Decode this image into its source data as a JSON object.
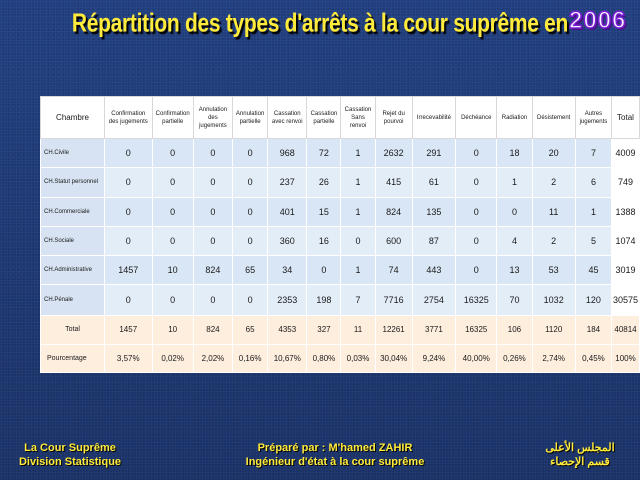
{
  "slide": {
    "title": "Répartition des types d'arrêts à la cour suprême en",
    "year": "2006"
  },
  "table": {
    "headers": [
      "Chambre",
      "Confirmation des jugements",
      "Confirmation partielle",
      "Annulation des jugements",
      "Annulation partielle",
      "Cassation avec renvoi",
      "Cassation partielle",
      "Cassation Sans renvoi",
      "Rejet du pourvoi",
      "Irrecevabilité",
      "Déchéance",
      "Radiation",
      "Désistement",
      "Autres jugements",
      "Total"
    ],
    "rows": [
      {
        "label": "CH.Civile",
        "values": [
          "0",
          "0",
          "0",
          "0",
          "968",
          "72",
          "1",
          "2632",
          "291",
          "0",
          "18",
          "20",
          "7",
          "4009"
        ]
      },
      {
        "label": "CH.Statut personnel",
        "values": [
          "0",
          "0",
          "0",
          "0",
          "237",
          "26",
          "1",
          "415",
          "61",
          "0",
          "1",
          "2",
          "6",
          "749"
        ]
      },
      {
        "label": "CH.Commerciale",
        "values": [
          "0",
          "0",
          "0",
          "0",
          "401",
          "15",
          "1",
          "824",
          "135",
          "0",
          "0",
          "11",
          "1",
          "1388"
        ]
      },
      {
        "label": "CH.Sociale",
        "values": [
          "0",
          "0",
          "0",
          "0",
          "360",
          "16",
          "0",
          "600",
          "87",
          "0",
          "4",
          "2",
          "5",
          "1074"
        ]
      },
      {
        "label": "CH.Administrative",
        "values": [
          "1457",
          "10",
          "824",
          "65",
          "34",
          "0",
          "1",
          "74",
          "443",
          "0",
          "13",
          "53",
          "45",
          "3019"
        ]
      },
      {
        "label": "CH.Pénale",
        "values": [
          "0",
          "0",
          "0",
          "0",
          "2353",
          "198",
          "7",
          "7716",
          "2754",
          "16325",
          "70",
          "1032",
          "120",
          "30575"
        ]
      }
    ],
    "total_row": {
      "label": "Total",
      "values": [
        "1457",
        "10",
        "824",
        "65",
        "4353",
        "327",
        "11",
        "12261",
        "3771",
        "16325",
        "106",
        "1120",
        "184",
        "40814"
      ]
    },
    "percent_row": {
      "label": "Pourcentage",
      "values": [
        "3,57%",
        "0,02%",
        "2,02%",
        "0,16%",
        "10,67%",
        "0,80%",
        "0,03%",
        "30,04%",
        "9,24%",
        "40,00%",
        "0,26%",
        "2,74%",
        "0,45%",
        "100%"
      ]
    }
  },
  "footer": {
    "left_line1": "La Cour Suprême",
    "left_line2": "Division Statistique",
    "center_line1": "Préparé par : M'hamed ZAHIR",
    "center_line2": "Ingénieur d'état à la cour suprême",
    "right_line1": "المجلس الأعلى",
    "right_line2": "قسم الإحصاء"
  },
  "colors": {
    "background": "#1f3a78",
    "title": "#ffeb3b",
    "year_outline": "#7a1fd0",
    "data_cell": "#d9e6f5",
    "summary_cell": "#fdeede"
  }
}
